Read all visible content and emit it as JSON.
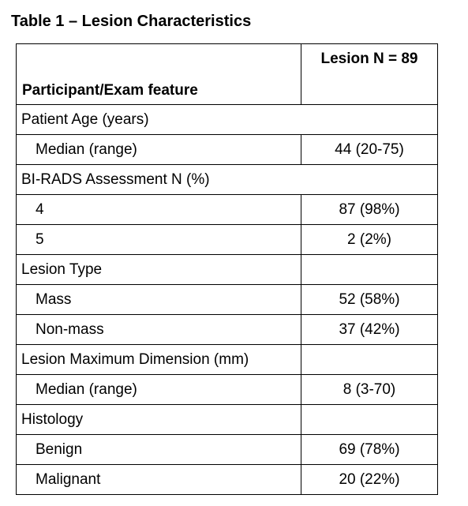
{
  "title": "Table 1 – Lesion Characteristics",
  "table": {
    "header": {
      "feature": "Participant/Exam feature",
      "value": "Lesion N = 89"
    },
    "rows": [
      {
        "label": "Patient Age (years)",
        "value": "",
        "kind": "span"
      },
      {
        "label": "Median (range)",
        "value": "44 (20-75)",
        "kind": "sub"
      },
      {
        "label": "BI-RADS Assessment N (%)",
        "value": "",
        "kind": "span"
      },
      {
        "label": "4",
        "value": "87 (98%)",
        "kind": "sub"
      },
      {
        "label": "5",
        "value": "2 (2%)",
        "kind": "sub"
      },
      {
        "label": "Lesion Type",
        "value": "",
        "kind": "cat"
      },
      {
        "label": "Mass",
        "value": "52 (58%)",
        "kind": "sub"
      },
      {
        "label": "Non-mass",
        "value": "37 (42%)",
        "kind": "sub"
      },
      {
        "label": "Lesion Maximum Dimension (mm)",
        "value": "",
        "kind": "cat"
      },
      {
        "label": "Median (range)",
        "value": "8 (3-70)",
        "kind": "sub"
      },
      {
        "label": "Histology",
        "value": "",
        "kind": "cat"
      },
      {
        "label": "Benign",
        "value": "69 (78%)",
        "kind": "sub"
      },
      {
        "label": "Malignant",
        "value": "20 (22%)",
        "kind": "sub"
      }
    ]
  }
}
